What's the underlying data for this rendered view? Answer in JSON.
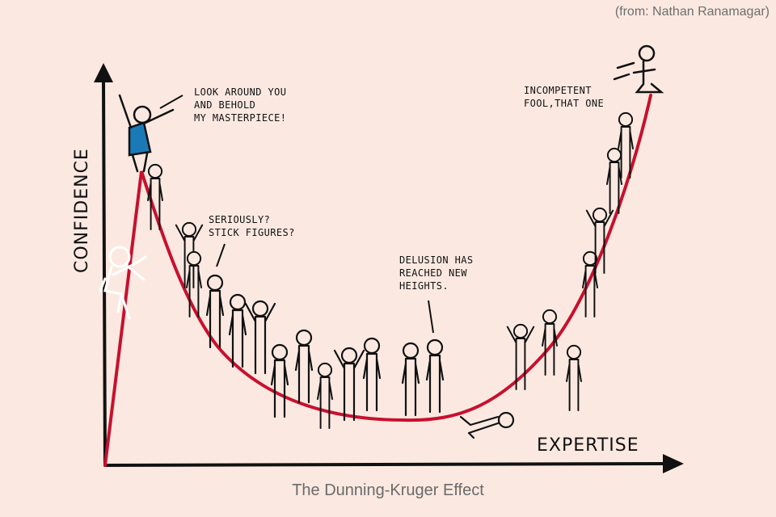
{
  "credit": "(from: Nathan Ranamagar)",
  "caption": "The Dunning-Kruger Effect",
  "axes": {
    "y_label": "CONFIDENCE",
    "x_label": "EXPERTISE"
  },
  "speech": {
    "masterpiece": [
      "LOOK AROUND YOU",
      "AND BEHOLD",
      "MY MASTERPIECE!"
    ],
    "stick_figures": [
      "SERIOUSLY?",
      "STICK FIGURES?"
    ],
    "delusion": [
      "DELUSION HAS",
      "REACHED NEW",
      "HEIGHTS."
    ],
    "fool": [
      "INCOMPETENT",
      "FOOL,THAT ONE"
    ]
  },
  "colors": {
    "background": "#fbe9e1",
    "curve": "#c8102e",
    "ink": "#111111",
    "highlight_shirt": "#1a7ab8"
  }
}
